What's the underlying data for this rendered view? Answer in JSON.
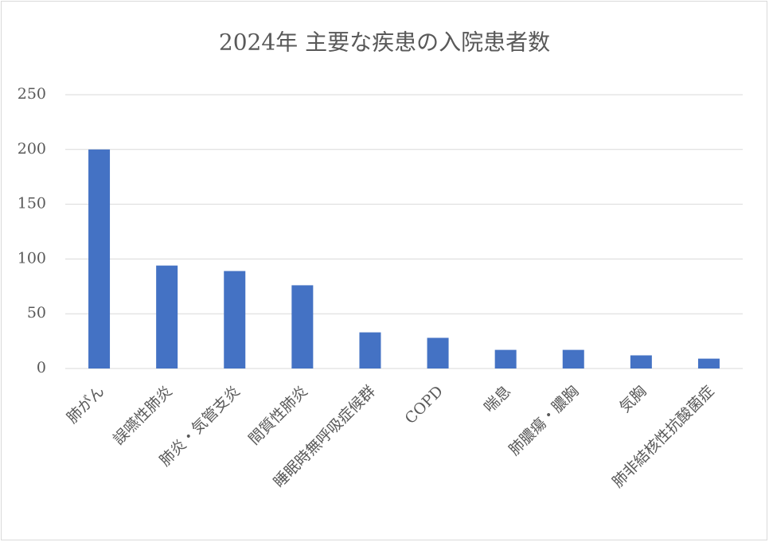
{
  "chart_data": {
    "type": "bar",
    "title": "2024年 主要な疾患の入院患者数",
    "categories": [
      "肺がん",
      "誤嚥性肺炎",
      "肺炎・気管支炎",
      "間質性肺炎",
      "睡眠時無呼吸症候群",
      "COPD",
      "喘息",
      "肺膿瘍・膿胸",
      "気胸",
      "肺非結核性抗酸菌症"
    ],
    "values": [
      200,
      94,
      89,
      76,
      33,
      28,
      17,
      17,
      12,
      9
    ],
    "color": "#4472c4",
    "ylim": [
      0,
      250
    ],
    "yticks": [
      0,
      50,
      100,
      150,
      200,
      250
    ],
    "grid": true
  }
}
